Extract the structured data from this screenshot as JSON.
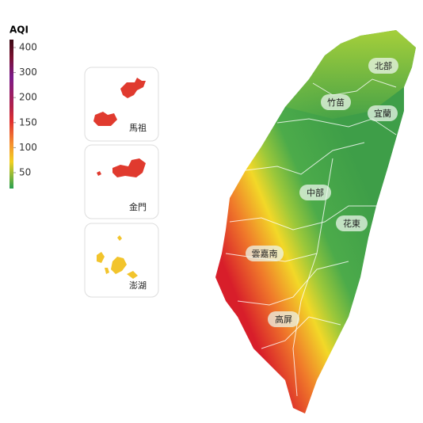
{
  "legend": {
    "title": "AQI",
    "ticks": [
      400,
      300,
      200,
      150,
      100,
      50
    ]
  },
  "insets": [
    "馬祖",
    "金門",
    "澎湖"
  ],
  "regions": [
    "北部",
    "竹苗",
    "宜蘭",
    "中部",
    "花東",
    "雲嘉南",
    "高屏"
  ]
}
